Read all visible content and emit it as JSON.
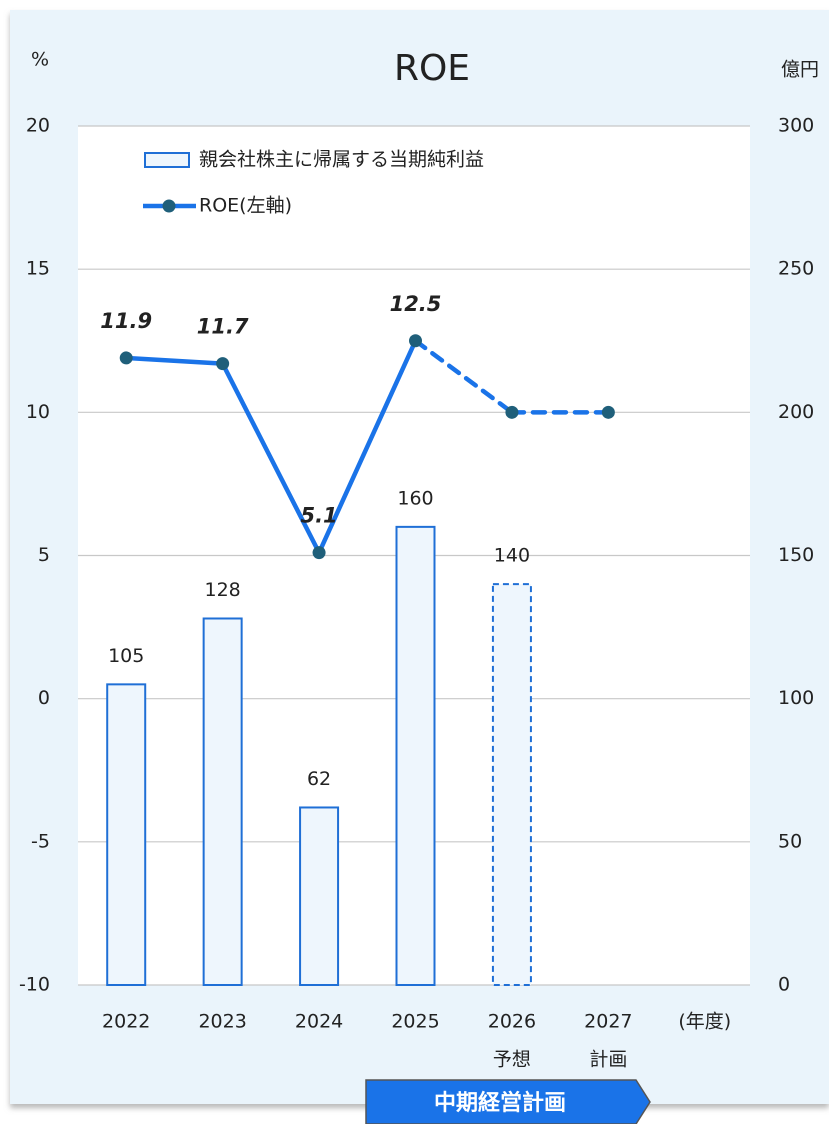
{
  "chart_data": {
    "type": "bar_line",
    "title": "ROE",
    "y_axis_label": "%",
    "y2_axis_label": "億円",
    "categories": [
      "2022",
      "2023",
      "2024",
      "2025",
      "2026",
      "2027",
      "(年度)"
    ],
    "category_sublabels": [
      null,
      null,
      null,
      null,
      "予想",
      "計画",
      null
    ],
    "projected": [
      false,
      false,
      false,
      false,
      true,
      true,
      null
    ],
    "series": [
      {
        "name": "親会社株主に帰属する当期純利益",
        "type": "bar",
        "axis": "y2",
        "color": "#1f6fd6",
        "fill": "#eef6fd",
        "values": [
          105,
          128,
          62,
          160,
          140,
          null,
          null
        ]
      },
      {
        "name": "ROE(左軸)",
        "type": "line",
        "axis": "y",
        "color": "#1a73e8",
        "marker_color": "#1f5f7a",
        "values": [
          11.9,
          11.7,
          5.1,
          12.5,
          10,
          10,
          null
        ],
        "value_labels": [
          "11.9",
          "11.7",
          "5.1",
          "12.5",
          null,
          null,
          null
        ]
      }
    ],
    "ylim": [
      -10,
      20
    ],
    "yticks": [
      -10,
      -5,
      0,
      5,
      10,
      15,
      20
    ],
    "y2lim": [
      0,
      300
    ],
    "y2ticks": [
      0,
      50,
      100,
      150,
      200,
      250,
      300
    ],
    "grid": true,
    "annotation": "中期経営計画"
  }
}
